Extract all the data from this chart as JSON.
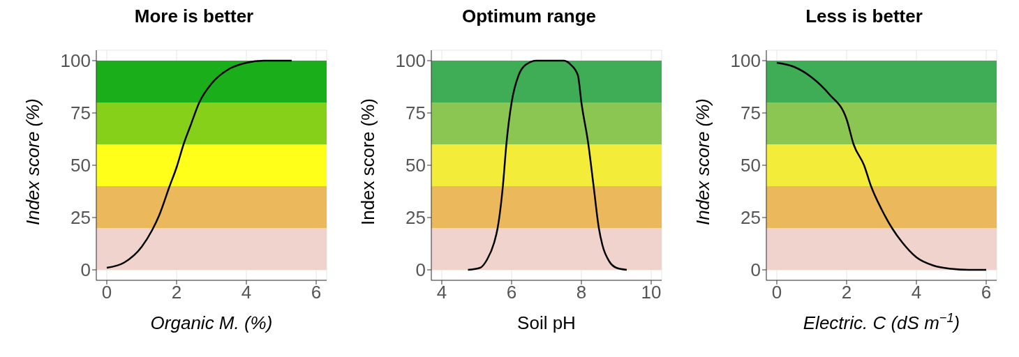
{
  "chart_data": [
    {
      "type": "line",
      "title": "More is better",
      "xlabel": "Organic M. (%)",
      "ylabel": "Index score (%)",
      "xlim": [
        -0.3,
        6.3
      ],
      "xticks": [
        0,
        2,
        4,
        6
      ],
      "ylim": [
        -5,
        105
      ],
      "yticks": [
        0,
        25,
        50,
        75,
        100
      ],
      "grid": true,
      "marker": "none",
      "line_style": "solid",
      "series": [
        {
          "color": "#000000",
          "x": [
            0,
            0.5,
            1,
            1.3,
            1.5,
            1.8,
            2,
            2.2,
            2.4,
            2.65,
            3,
            3.5,
            4,
            4.5,
            5.3
          ],
          "values": [
            1,
            3.5,
            11,
            19,
            26,
            40,
            49,
            60,
            69,
            80,
            89,
            96,
            99,
            100,
            100
          ]
        }
      ],
      "bands": [
        {
          "axis": "y",
          "from": 0,
          "to": 20,
          "color": "#f0d3cc"
        },
        {
          "axis": "y",
          "from": 20,
          "to": 40,
          "color": "#ebb95c"
        },
        {
          "axis": "y",
          "from": 40,
          "to": 60,
          "color": "#ffff1a"
        },
        {
          "axis": "y",
          "from": 60,
          "to": 80,
          "color": "#87d01a"
        },
        {
          "axis": "y",
          "from": 80,
          "to": 100,
          "color": "#1aaf1a"
        }
      ]
    },
    {
      "type": "line",
      "title": "Optimum range",
      "xlabel": "Soil pH",
      "ylabel": "Index score (%)",
      "xlim": [
        3.7,
        10.3
      ],
      "xticks": [
        4,
        6,
        8,
        10
      ],
      "ylim": [
        -5,
        105
      ],
      "yticks": [
        0,
        25,
        50,
        75,
        100
      ],
      "grid": true,
      "marker": "none",
      "line_style": "solid",
      "series": [
        {
          "color": "#000000",
          "x": [
            4.75,
            5.1,
            5.3,
            5.5,
            5.6,
            5.75,
            5.85,
            6,
            6.2,
            6.4,
            6.7,
            7.5,
            7.7,
            7.9,
            8,
            8.2,
            8.35,
            8.5,
            8.6,
            8.8,
            9,
            9.3
          ],
          "values": [
            0,
            1,
            5,
            13,
            20,
            40,
            60,
            80,
            93,
            98,
            100,
            100,
            98,
            93,
            80,
            60,
            40,
            20,
            12,
            4,
            1,
            0
          ]
        }
      ],
      "bands": [
        {
          "axis": "y",
          "from": 0,
          "to": 20,
          "color": "#f0d3cc"
        },
        {
          "axis": "y",
          "from": 20,
          "to": 40,
          "color": "#ebb95c"
        },
        {
          "axis": "y",
          "from": 40,
          "to": 60,
          "color": "#f3ed3a"
        },
        {
          "axis": "y",
          "from": 60,
          "to": 80,
          "color": "#8bc653"
        },
        {
          "axis": "y",
          "from": 80,
          "to": 100,
          "color": "#3fad56"
        }
      ]
    },
    {
      "type": "line",
      "title": "Less is better",
      "xlabel": "Electric. C (dS m$^{−1}$)",
      "ylabel": "Index score (%)",
      "xlim": [
        -0.3,
        6.3
      ],
      "xticks": [
        0,
        2,
        4,
        6
      ],
      "ylim": [
        -5,
        105
      ],
      "yticks": [
        0,
        25,
        50,
        75,
        100
      ],
      "grid": true,
      "marker": "none",
      "line_style": "solid",
      "series": [
        {
          "color": "#000000",
          "x": [
            0,
            0.5,
            1,
            1.5,
            2,
            2.2,
            2.5,
            2.7,
            3,
            3.3,
            3.6,
            4,
            4.5,
            5,
            5.5,
            6
          ],
          "values": [
            99,
            97,
            92,
            84,
            72,
            60,
            50,
            40,
            29,
            20,
            13,
            6,
            2,
            0.5,
            0,
            0
          ]
        }
      ],
      "bands": [
        {
          "axis": "y",
          "from": 0,
          "to": 20,
          "color": "#f0d3cc"
        },
        {
          "axis": "y",
          "from": 20,
          "to": 40,
          "color": "#ebb95c"
        },
        {
          "axis": "y",
          "from": 40,
          "to": 60,
          "color": "#f3ed3a"
        },
        {
          "axis": "y",
          "from": 60,
          "to": 80,
          "color": "#8bc653"
        },
        {
          "axis": "y",
          "from": 80,
          "to": 100,
          "color": "#3fad56"
        }
      ]
    }
  ]
}
